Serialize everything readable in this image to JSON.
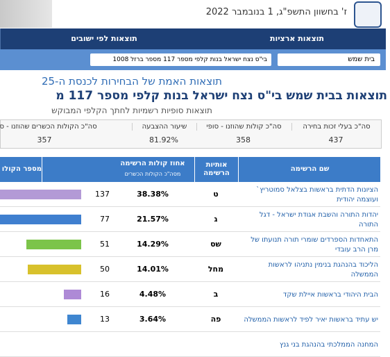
{
  "header": {
    "date": "ז' בחשוון התשפ\"ג, 1 בנובמבר 2022",
    "tabs": [
      "תוצאות ארציות",
      "תוצאות לפי ישובים"
    ],
    "city_select": "בית שמש",
    "ballot_select": "בי\"ס נצח ישראל בנות קלפי מספר 117 מספר ברזל 1008"
  },
  "titles": {
    "main": "תוצאות האמת של הבחירות לכנסת ה-25",
    "location": "תוצאות בבית שמש בי\"ס נצח ישראל בנות קלפי מספר 117 מ",
    "subtitle": "תוצאות סופיות רשמיות לחתך הקלפי המבוקש"
  },
  "summary": {
    "headers": [
      "סה\"כ בעלי זכות בחירה",
      "סה\"כ קולות שהוזנו - סופי",
      "שיעור ההצבעה",
      "סה\"כ הקולות הכשרים שהוזנו - סופי"
    ],
    "values": [
      "437",
      "358",
      "81.92%",
      "357"
    ]
  },
  "table": {
    "headers": [
      "שם הרשימה",
      "אותיות הרשימה",
      "אחוז קולות הרשימה",
      "מסה\"כ הקולות הכשרים",
      "מספר הקולו"
    ],
    "rows": [
      {
        "name": "הציונות הדתית בראשות בצלאל סמוטריץ` ועוצמה יהודית",
        "letters": "ט",
        "percent": "38.38%",
        "votes": 137,
        "color": "#b39ad6"
      },
      {
        "name": "יהדות התורה והשבת אגודת ישראל - דגל התורה",
        "letters": "ג",
        "percent": "21.57%",
        "votes": 77,
        "color": "#3f7fcf"
      },
      {
        "name": "התאחדות הספרדים שומרי תורה תנועתו של מרן הרב עובדי",
        "letters": "שס",
        "percent": "14.29%",
        "votes": 51,
        "color": "#7cc44a"
      },
      {
        "name": "הליכוד בהנהגת בנימין נתניהו לראשות הממשלה",
        "letters": "מחל",
        "percent": "14.01%",
        "votes": 50,
        "color": "#d8c12c"
      },
      {
        "name": "הבית היהודי בראשות איילת שקד",
        "letters": "ב",
        "percent": "4.48%",
        "votes": 16,
        "color": "#ae8ad6"
      },
      {
        "name": "יש עתיד בראשות יאיר לפיד לראשות הממשלה",
        "letters": "פה",
        "percent": "3.64%",
        "votes": 13,
        "color": "#3f86d0"
      },
      {
        "name": "המחנה הממלכתי בהנהגת בני גנץ"
      }
    ]
  }
}
